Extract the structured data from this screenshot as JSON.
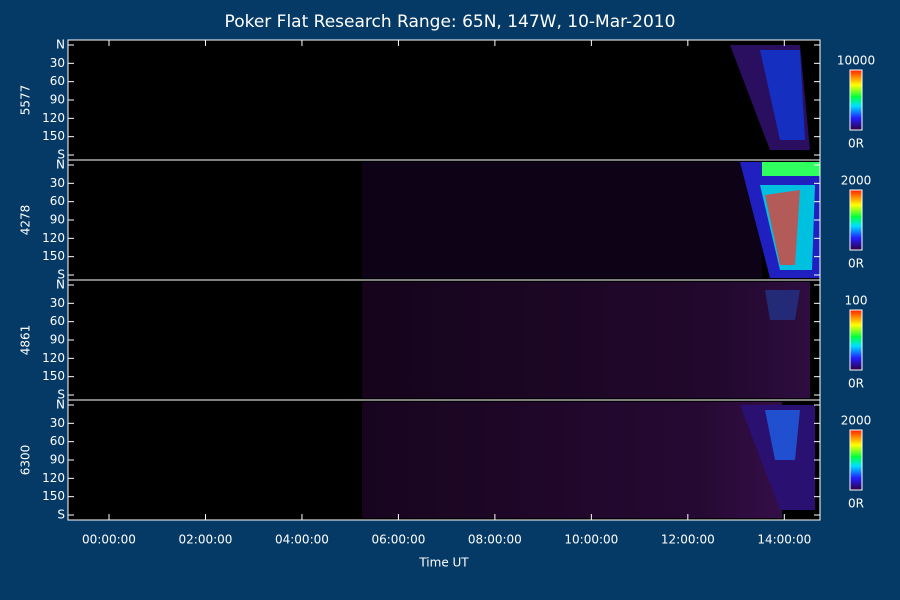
{
  "chart_data": {
    "type": "heatmap",
    "title": "Poker Flat Research Range: 65N, 147W, 10-Mar-2010",
    "xlabel": "Time UT",
    "xlim": [
      -0.85,
      14.74
    ],
    "xticks": [
      {
        "value": 0,
        "label": "00:00:00"
      },
      {
        "value": 2,
        "label": "02:00:00"
      },
      {
        "value": 4,
        "label": "04:00:00"
      },
      {
        "value": 6,
        "label": "06:00:00"
      },
      {
        "value": 8,
        "label": "08:00:00"
      },
      {
        "value": 10,
        "label": "10:00:00"
      },
      {
        "value": 12,
        "label": "12:00:00"
      },
      {
        "value": 14,
        "label": "14:00:00"
      }
    ],
    "panels": [
      {
        "label": "5577",
        "ylim": [
          0,
          180
        ],
        "yticks": [
          {
            "value": 0,
            "label": "N"
          },
          30,
          60,
          90,
          120,
          150,
          {
            "value": 180,
            "label": "S"
          }
        ],
        "clim": [
          0,
          10000
        ],
        "cticks": [
          {
            "value": 0,
            "label": "0R"
          },
          10000
        ]
      },
      {
        "label": "4278",
        "ylim": [
          0,
          180
        ],
        "yticks": [
          {
            "value": 0,
            "label": "N"
          },
          30,
          60,
          90,
          120,
          150,
          {
            "value": 180,
            "label": "S"
          }
        ],
        "clim": [
          0,
          2000
        ],
        "cticks": [
          {
            "value": 0,
            "label": "0R"
          },
          2000
        ]
      },
      {
        "label": "4861",
        "ylim": [
          0,
          180
        ],
        "yticks": [
          {
            "value": 0,
            "label": "N"
          },
          30,
          60,
          90,
          120,
          150,
          {
            "value": 180,
            "label": "S"
          }
        ],
        "clim": [
          0,
          100
        ],
        "cticks": [
          {
            "value": 0,
            "label": "0R"
          },
          100
        ]
      },
      {
        "label": "6300",
        "ylim": [
          0,
          180
        ],
        "yticks": [
          {
            "value": 0,
            "label": "N"
          },
          30,
          60,
          90,
          120,
          150,
          {
            "value": 180,
            "label": "S"
          }
        ],
        "clim": [
          0,
          2000
        ],
        "cticks": [
          {
            "value": 0,
            "label": "0R"
          },
          2000
        ]
      }
    ]
  }
}
